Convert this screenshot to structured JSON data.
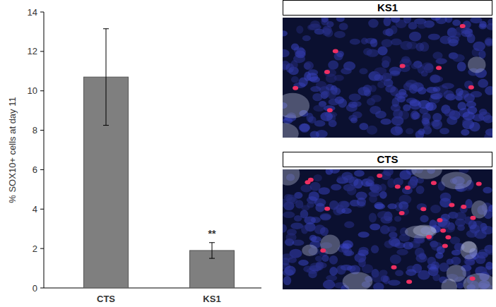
{
  "chart_data": {
    "type": "bar",
    "ylabel": "% SOX10+ cells at day 11",
    "categories": [
      "CTS",
      "KS1"
    ],
    "values": [
      10.7,
      1.9
    ],
    "errors": [
      2.45,
      0.4
    ],
    "color": "#7f7f7f",
    "ylim": [
      0,
      14
    ],
    "yticks": [
      0,
      2,
      4,
      6,
      8,
      10,
      12,
      14
    ],
    "grid": false,
    "annotations": [
      {
        "text": "**",
        "category": "KS1"
      }
    ]
  },
  "panels": [
    {
      "title": "KS1"
    },
    {
      "title": "CTS"
    }
  ]
}
